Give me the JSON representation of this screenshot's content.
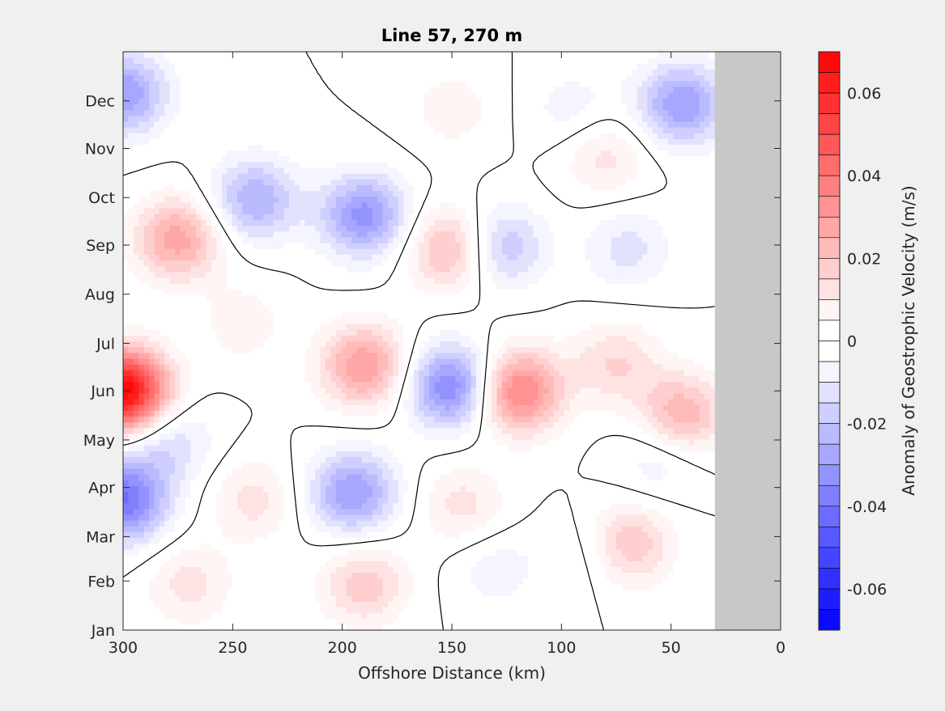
{
  "chart_data": {
    "type": "heatmap",
    "title": "Line 57, 270 m",
    "xlabel": "Offshore Distance (km)",
    "ylabel": "",
    "x_ticks": [
      "300",
      "250",
      "200",
      "150",
      "100",
      "50",
      "0"
    ],
    "x_tick_values": [
      300,
      250,
      200,
      150,
      100,
      50,
      0
    ],
    "xlim": [
      300,
      0
    ],
    "x_reversed": true,
    "y_ticks": [
      "Jan",
      "Feb",
      "Mar",
      "Apr",
      "May",
      "Jun",
      "Jul",
      "Aug",
      "Sep",
      "Oct",
      "Nov",
      "Dec"
    ],
    "y_tick_values": [
      1,
      32,
      60,
      91,
      121,
      152,
      182,
      213,
      244,
      274,
      305,
      335
    ],
    "ylim": [
      1,
      366
    ],
    "y_unit": "day of year",
    "grid": false,
    "colorbar": {
      "label": "Anomaly of Geostrophic Velocity (m/s)",
      "ticks": [
        "0.06",
        "0.04",
        "0.02",
        "0",
        "-0.02",
        "-0.04",
        "-0.06"
      ],
      "tick_values": [
        0.06,
        0.04,
        0.02,
        0,
        -0.02,
        -0.04,
        -0.06
      ],
      "range": [
        -0.07,
        0.07
      ],
      "level_step": 0.005,
      "neutral_band": [
        -0.005,
        0.005
      ],
      "colors": {
        "negative": "#0000ff",
        "neutral": "#ffffff",
        "positive": "#ff0000"
      }
    },
    "no_data_region": {
      "x_range": [
        30,
        0
      ],
      "color": "#c8c8c8"
    },
    "zero_contour_color": "#000000",
    "features": [
      {
        "sign": "positive",
        "x": 300,
        "y": 152,
        "peak": 0.07
      },
      {
        "sign": "positive",
        "x": 120,
        "y": 152,
        "peak": 0.038
      },
      {
        "sign": "positive",
        "x": 190,
        "y": 168,
        "peak": 0.03
      },
      {
        "sign": "positive",
        "x": 275,
        "y": 248,
        "peak": 0.028
      },
      {
        "sign": "positive",
        "x": 150,
        "y": 242,
        "peak": 0.025
      },
      {
        "sign": "positive",
        "x": 45,
        "y": 137,
        "peak": 0.025
      },
      {
        "sign": "positive",
        "x": 70,
        "y": 55,
        "peak": 0.022
      },
      {
        "sign": "positive",
        "x": 190,
        "y": 30,
        "peak": 0.018
      },
      {
        "sign": "positive",
        "x": 270,
        "y": 30,
        "peak": 0.012
      },
      {
        "sign": "positive",
        "x": 240,
        "y": 83,
        "peak": 0.012
      },
      {
        "sign": "positive",
        "x": 75,
        "y": 170,
        "peak": 0.015
      },
      {
        "sign": "positive",
        "x": 80,
        "y": 300,
        "peak": 0.012
      },
      {
        "sign": "positive",
        "x": 145,
        "y": 80,
        "peak": 0.012
      },
      {
        "sign": "positive",
        "x": 245,
        "y": 195,
        "peak": 0.008
      },
      {
        "sign": "positive",
        "x": 150,
        "y": 330,
        "peak": 0.008
      },
      {
        "sign": "negative",
        "x": 150,
        "y": 155,
        "peak": -0.037
      },
      {
        "sign": "negative",
        "x": 300,
        "y": 83,
        "peak": -0.04
      },
      {
        "sign": "negative",
        "x": 300,
        "y": 340,
        "peak": -0.03
      },
      {
        "sign": "negative",
        "x": 190,
        "y": 263,
        "peak": -0.032
      },
      {
        "sign": "negative",
        "x": 195,
        "y": 88,
        "peak": -0.03
      },
      {
        "sign": "negative",
        "x": 240,
        "y": 273,
        "peak": -0.025
      },
      {
        "sign": "negative",
        "x": 45,
        "y": 333,
        "peak": -0.03
      },
      {
        "sign": "negative",
        "x": 128,
        "y": 243,
        "peak": -0.022
      },
      {
        "sign": "negative",
        "x": 70,
        "y": 242,
        "peak": -0.012
      },
      {
        "sign": "negative",
        "x": 280,
        "y": 120,
        "peak": -0.015
      },
      {
        "sign": "negative",
        "x": 95,
        "y": 330,
        "peak": -0.008
      },
      {
        "sign": "negative",
        "x": 85,
        "y": 50,
        "peak": -0.008
      },
      {
        "sign": "negative",
        "x": 55,
        "y": 110,
        "peak": -0.01
      },
      {
        "sign": "negative",
        "x": 130,
        "y": 40,
        "peak": -0.008
      }
    ]
  }
}
